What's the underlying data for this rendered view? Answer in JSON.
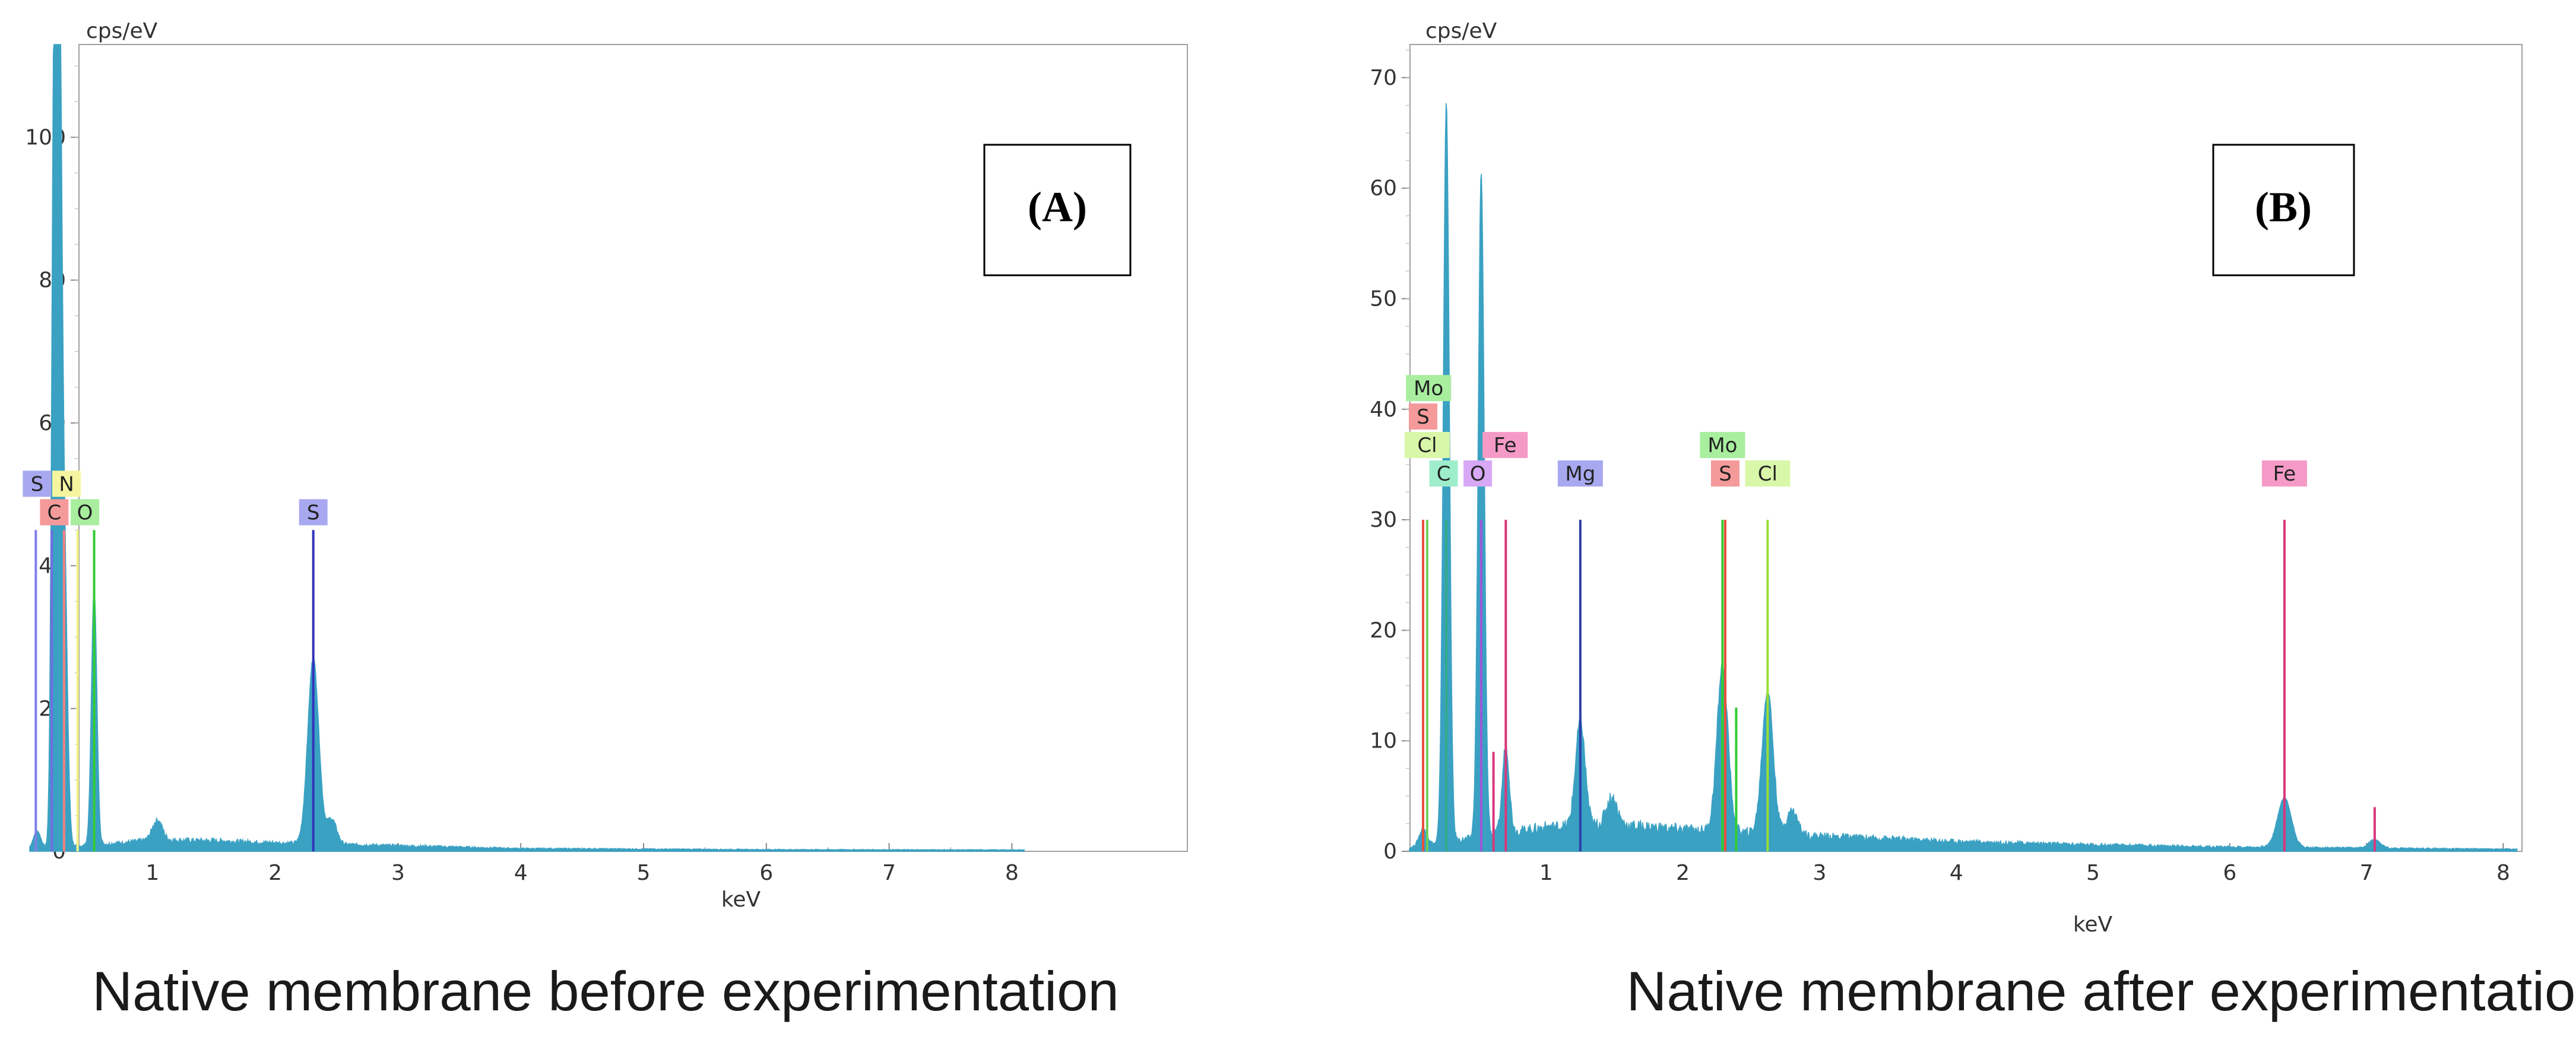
{
  "figure": {
    "captions": [
      "Native membrane before experimentation",
      "Native membrane after experimentation"
    ]
  },
  "chart_data": [
    {
      "type": "area",
      "panel_label": "(A)",
      "caption": "Native membrane before experimentation",
      "xlabel": "keV",
      "ylabel": "cps/eV",
      "xlim": [
        0,
        8.1
      ],
      "ylim": [
        0,
        113
      ],
      "xticks": [
        1,
        2,
        3,
        4,
        5,
        6,
        7,
        8
      ],
      "yticks": [
        0,
        20,
        40,
        60,
        80,
        100
      ],
      "spectrum_color": "#3aa1c3",
      "peaks": [
        {
          "x": 0.06,
          "y": 2.5,
          "w": 0.03
        },
        {
          "x": 0.2,
          "y": 113,
          "w": 0.02
        },
        {
          "x": 0.24,
          "y": 108,
          "w": 0.02
        },
        {
          "x": 0.28,
          "y": 42,
          "w": 0.025
        },
        {
          "x": 0.525,
          "y": 36,
          "w": 0.022
        },
        {
          "x": 1.04,
          "y": 2.8,
          "w": 0.04
        },
        {
          "x": 2.31,
          "y": 26,
          "w": 0.045
        },
        {
          "x": 2.46,
          "y": 3.5,
          "w": 0.04
        }
      ],
      "background": [
        [
          0.0,
          0.3
        ],
        [
          0.6,
          1.0
        ],
        [
          1.0,
          1.6
        ],
        [
          1.5,
          1.5
        ],
        [
          2.0,
          1.2
        ],
        [
          3.0,
          0.8
        ],
        [
          4.0,
          0.4
        ],
        [
          6.0,
          0.25
        ],
        [
          8.1,
          0.2
        ]
      ],
      "lines": [
        {
          "x": 0.05,
          "h": 45,
          "color": "#7f7fe8"
        },
        {
          "x": 0.18,
          "h": 45,
          "color": "#6f6fe0"
        },
        {
          "x": 0.28,
          "h": 45,
          "color": "#f08080"
        },
        {
          "x": 0.39,
          "h": 45,
          "color": "#f4f48a"
        },
        {
          "x": 0.525,
          "h": 45,
          "color": "#33cc33"
        },
        {
          "x": 2.31,
          "h": 45,
          "color": "#3333bb"
        }
      ],
      "labels": [
        {
          "text": "S",
          "x": 0.06,
          "level": 2,
          "bg": "#a8a8f0"
        },
        {
          "text": "N",
          "x": 0.3,
          "level": 2,
          "bg": "#f5f5a0"
        },
        {
          "text": "C",
          "x": 0.2,
          "level": 1,
          "bg": "#f49a9a"
        },
        {
          "text": "O",
          "x": 0.45,
          "level": 1,
          "bg": "#a8ee9e"
        },
        {
          "text": "S",
          "x": 2.31,
          "level": 1,
          "bg": "#a8a8f0"
        }
      ]
    },
    {
      "type": "area",
      "panel_label": "(B)",
      "caption": "Native membrane after experimentation",
      "xlabel": "keV",
      "ylabel": "cps/eV",
      "xlim": [
        0,
        8.1
      ],
      "ylim": [
        0,
        73
      ],
      "xticks": [
        1,
        2,
        3,
        4,
        5,
        6,
        7,
        8
      ],
      "yticks": [
        0,
        10,
        20,
        30,
        40,
        50,
        60,
        70
      ],
      "spectrum_color": "#3aa1c3",
      "peaks": [
        {
          "x": 0.1,
          "y": 1.5,
          "w": 0.03
        },
        {
          "x": 0.27,
          "y": 67,
          "w": 0.022
        },
        {
          "x": 0.525,
          "y": 60,
          "w": 0.022
        },
        {
          "x": 0.705,
          "y": 8,
          "w": 0.025
        },
        {
          "x": 1.25,
          "y": 9.5,
          "w": 0.035
        },
        {
          "x": 1.48,
          "y": 2.5,
          "w": 0.04
        },
        {
          "x": 2.29,
          "y": 15,
          "w": 0.04
        },
        {
          "x": 2.62,
          "y": 13,
          "w": 0.04
        },
        {
          "x": 2.8,
          "y": 2.2,
          "w": 0.04
        },
        {
          "x": 6.4,
          "y": 4.5,
          "w": 0.05
        },
        {
          "x": 7.06,
          "y": 0.8,
          "w": 0.04
        }
      ],
      "background": [
        [
          0.0,
          0.3
        ],
        [
          0.6,
          1.5
        ],
        [
          1.0,
          2.2
        ],
        [
          1.5,
          2.4
        ],
        [
          2.0,
          2.0
        ],
        [
          3.0,
          1.4
        ],
        [
          4.0,
          0.9
        ],
        [
          5.0,
          0.6
        ],
        [
          6.0,
          0.4
        ],
        [
          7.0,
          0.3
        ],
        [
          8.1,
          0.2
        ]
      ],
      "lines": [
        {
          "x": 0.1,
          "h": 30,
          "color": "#e8503c"
        },
        {
          "x": 0.13,
          "h": 30,
          "color": "#6fcf5a"
        },
        {
          "x": 0.27,
          "h": 30,
          "color": "#33aa88"
        },
        {
          "x": 0.525,
          "h": 30,
          "color": "#9c58d8"
        },
        {
          "x": 0.615,
          "h": 9,
          "color": "#d9377c"
        },
        {
          "x": 0.705,
          "h": 30,
          "color": "#d9377c"
        },
        {
          "x": 1.25,
          "h": 30,
          "color": "#2e3fa8"
        },
        {
          "x": 2.29,
          "h": 30,
          "color": "#33cc33"
        },
        {
          "x": 2.31,
          "h": 30,
          "color": "#e8503c"
        },
        {
          "x": 2.62,
          "h": 30,
          "color": "#99dd33"
        },
        {
          "x": 2.39,
          "h": 13,
          "color": "#33cc33"
        },
        {
          "x": 6.4,
          "h": 30,
          "color": "#d9377c"
        },
        {
          "x": 7.06,
          "h": 4,
          "color": "#d9377c"
        }
      ],
      "labels": [
        {
          "text": "Mo",
          "x": 0.14,
          "level": 5,
          "bg": "#a8ee9e"
        },
        {
          "text": "S",
          "x": 0.1,
          "level": 4,
          "bg": "#f49a9a"
        },
        {
          "text": "Cl",
          "x": 0.13,
          "level": 3,
          "bg": "#d9f7a8"
        },
        {
          "text": "Fe",
          "x": 0.7,
          "level": 3,
          "bg": "#f59ac6"
        },
        {
          "text": "Mo",
          "x": 2.29,
          "level": 3,
          "bg": "#a8ee9e"
        },
        {
          "text": "C",
          "x": 0.25,
          "level": 2,
          "bg": "#9eeecb"
        },
        {
          "text": "O",
          "x": 0.5,
          "level": 2,
          "bg": "#d6a8f5"
        },
        {
          "text": "Mg",
          "x": 1.25,
          "level": 2,
          "bg": "#a8a8f0"
        },
        {
          "text": "S",
          "x": 2.31,
          "level": 2,
          "bg": "#f49a9a"
        },
        {
          "text": "Cl",
          "x": 2.62,
          "level": 2,
          "bg": "#d9f7a8"
        },
        {
          "text": "Fe",
          "x": 6.4,
          "level": 2,
          "bg": "#f59ac6"
        }
      ]
    }
  ]
}
